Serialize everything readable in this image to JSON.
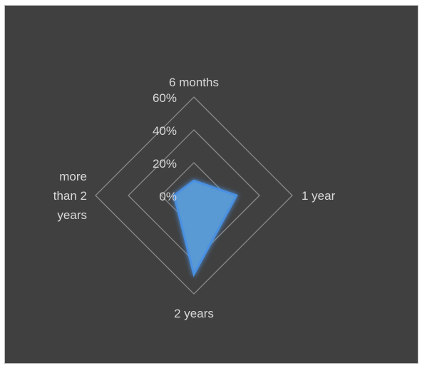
{
  "chart_data": {
    "type": "radar",
    "categories": [
      "6 months",
      "1 year",
      "2 years",
      "more than 2 years"
    ],
    "category_label_lines": [
      [
        "6 months"
      ],
      [
        "1 year"
      ],
      [
        "2 years"
      ],
      [
        "more",
        "than 2",
        "years"
      ]
    ],
    "values": [
      0.09,
      0.26,
      0.48,
      0.12
    ],
    "axis_ticks": [
      "0%",
      "20%",
      "40%",
      "60%"
    ],
    "rlim": [
      0,
      0.6
    ],
    "grid": true,
    "colors": {
      "background": "#404040",
      "grid": "#8a8a8a",
      "series_fill": "#5b9bd5",
      "series_glow": "#4a90e2",
      "text": "#d9d9d9"
    }
  }
}
